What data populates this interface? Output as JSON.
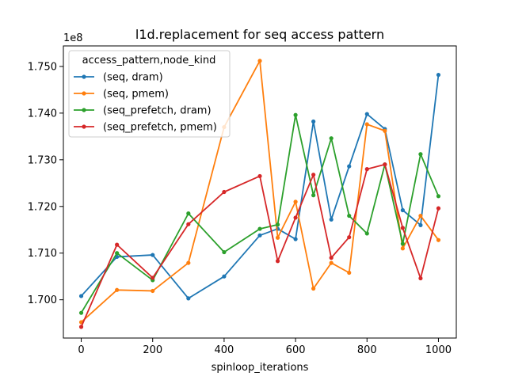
{
  "chart_data": {
    "type": "line",
    "title": "l1d.replacement for seq access pattern",
    "xlabel": "spinloop_iterations",
    "ylabel": "",
    "y_offset_label": "1e8",
    "xlim": [
      -50,
      1050
    ],
    "ylim": [
      1.6918,
      1.7544
    ],
    "x_ticks": [
      0,
      200,
      400,
      600,
      800,
      1000
    ],
    "x_tick_labels": [
      "0",
      "200",
      "400",
      "600",
      "800",
      "1000"
    ],
    "y_ticks": [
      1.7,
      1.71,
      1.72,
      1.73,
      1.74,
      1.75
    ],
    "y_tick_labels": [
      "1.700",
      "1.710",
      "1.720",
      "1.730",
      "1.740",
      "1.750"
    ],
    "grid": false,
    "legend": {
      "title": "access_pattern,node_kind",
      "placement": "upper-left"
    },
    "x": [
      0,
      100,
      200,
      300,
      400,
      500,
      550,
      600,
      650,
      700,
      750,
      800,
      850,
      900,
      950,
      1000
    ],
    "series": [
      {
        "name": "(seq, dram)",
        "color": "#1f77b4",
        "values": [
          1.7008,
          1.7092,
          1.7096,
          1.7003,
          1.705,
          1.7138,
          1.7152,
          1.713,
          1.7382,
          1.7172,
          1.7286,
          1.7398,
          1.7366,
          1.7192,
          1.716,
          1.7482
        ]
      },
      {
        "name": "(seq, pmem)",
        "color": "#ff7f0e",
        "values": [
          1.6952,
          1.7021,
          1.7019,
          1.7079,
          1.737,
          1.7512,
          1.7133,
          1.721,
          1.7024,
          1.7079,
          1.7058,
          1.7376,
          1.7362,
          1.711,
          1.718,
          1.7128
        ]
      },
      {
        "name": "(seq_prefetch, dram)",
        "color": "#2ca02c",
        "values": [
          1.6972,
          1.71,
          1.7042,
          1.7185,
          1.7102,
          1.7152,
          1.7161,
          1.7396,
          1.7224,
          1.7346,
          1.718,
          1.7142,
          1.729,
          1.712,
          1.7312,
          1.7222
        ]
      },
      {
        "name": "(seq_prefetch, pmem)",
        "color": "#d62728",
        "values": [
          1.6942,
          1.7118,
          1.7047,
          1.7162,
          1.7231,
          1.7265,
          1.7083,
          1.7176,
          1.7268,
          1.709,
          1.7134,
          1.728,
          1.729,
          1.7154,
          1.7046,
          1.7196
        ]
      }
    ]
  }
}
